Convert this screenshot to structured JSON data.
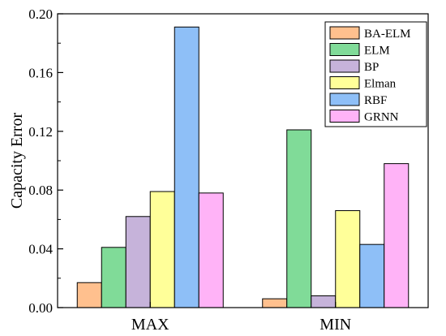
{
  "chart_data": {
    "type": "bar",
    "categories": [
      "MAX",
      "MIN"
    ],
    "series": [
      {
        "name": "BA-ELM",
        "color": "#FFC08E",
        "values": [
          0.017,
          0.006
        ]
      },
      {
        "name": "ELM",
        "color": "#80DB98",
        "values": [
          0.041,
          0.121
        ]
      },
      {
        "name": "BP",
        "color": "#C6B3DA",
        "values": [
          0.062,
          0.008
        ]
      },
      {
        "name": "Elman",
        "color": "#FFFF99",
        "values": [
          0.079,
          0.066
        ]
      },
      {
        "name": "RBF",
        "color": "#8EBFF7",
        "values": [
          0.191,
          0.043
        ]
      },
      {
        "name": "GRNN",
        "color": "#FFB3F7",
        "values": [
          0.078,
          0.098
        ]
      }
    ],
    "title": "",
    "xlabel": "",
    "ylabel": "Capacity Error",
    "ylim": [
      0,
      0.2
    ],
    "yticks": [
      "0.00",
      "0.04",
      "0.08",
      "0.12",
      "0.16",
      "0.20"
    ],
    "grid": false,
    "legend": "top-right"
  }
}
